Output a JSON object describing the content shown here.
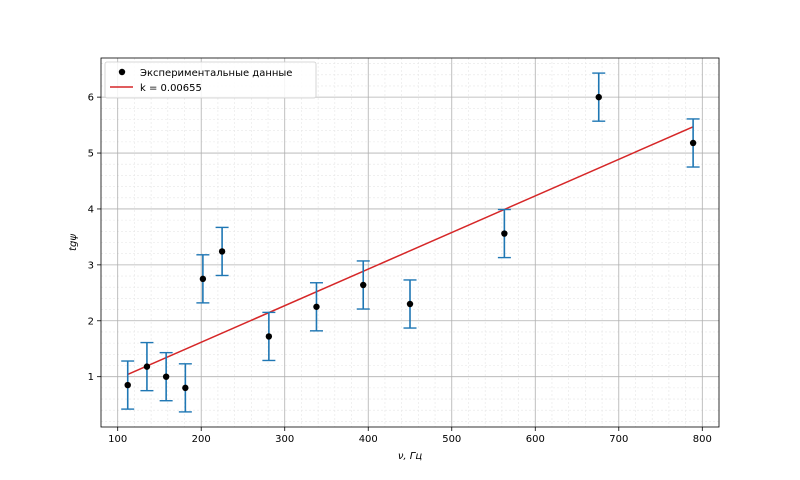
{
  "chart_data": {
    "type": "scatter",
    "title": "",
    "xlabel": "ν, Гц",
    "ylabel": "tgψ",
    "xlim": [
      80,
      820
    ],
    "ylim": [
      0.1,
      6.7
    ],
    "grid": true,
    "minor_grid": true,
    "legend_placement": "top-left",
    "x_ticks": [
      100,
      200,
      300,
      400,
      500,
      600,
      700,
      800
    ],
    "y_ticks": [
      1,
      2,
      3,
      4,
      5,
      6
    ],
    "series": [
      {
        "name": "Экспериментальные данные",
        "kind": "points_with_errorbars",
        "marker_color": "#000000",
        "errorbar_color": "#1f77b4",
        "points": [
          {
            "x": 112,
            "y": 0.85,
            "err": 0.43
          },
          {
            "x": 135,
            "y": 1.18,
            "err": 0.43
          },
          {
            "x": 158,
            "y": 1.0,
            "err": 0.43
          },
          {
            "x": 181,
            "y": 0.8,
            "err": 0.43
          },
          {
            "x": 202,
            "y": 2.75,
            "err": 0.43
          },
          {
            "x": 225,
            "y": 3.24,
            "err": 0.43
          },
          {
            "x": 281,
            "y": 1.72,
            "err": 0.43
          },
          {
            "x": 338,
            "y": 2.25,
            "err": 0.43
          },
          {
            "x": 394,
            "y": 2.64,
            "err": 0.43
          },
          {
            "x": 450,
            "y": 2.3,
            "err": 0.43
          },
          {
            "x": 563,
            "y": 3.56,
            "err": 0.43
          },
          {
            "x": 676,
            "y": 6.0,
            "err": 0.43
          },
          {
            "x": 789,
            "y": 5.18,
            "err": 0.43
          }
        ]
      },
      {
        "name": "k = 0.00655",
        "kind": "line",
        "color": "#d62728",
        "points": [
          {
            "x": 112,
            "y": 1.04
          },
          {
            "x": 789,
            "y": 5.47
          }
        ]
      }
    ]
  }
}
